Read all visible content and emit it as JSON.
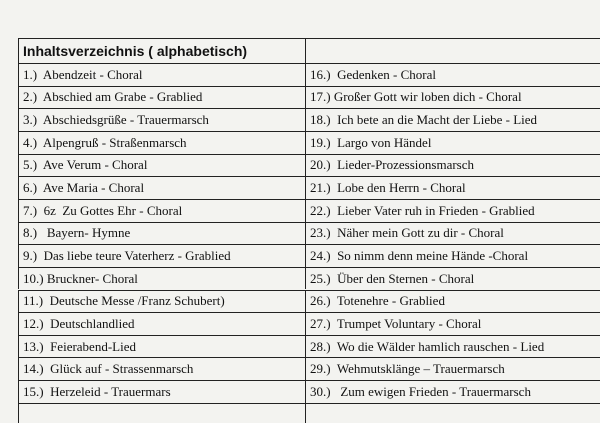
{
  "table": {
    "header": "Inhaltsverzeichnis ( alphabetisch)",
    "rows": [
      [
        "1.)  Abendzeit - Choral",
        "16.)  Gedenken - Choral"
      ],
      [
        "2.)  Abschied am Grabe - Grablied",
        "17.) Großer Gott wir loben dich - Choral"
      ],
      [
        "3.)  Abschiedsgrüße - Trauermarsch",
        "18.)  Ich bete an die Macht der Liebe - Lied"
      ],
      [
        "4.)  Alpengruß - Straßenmarsch",
        "19.)  Largo von Händel"
      ],
      [
        "5.)  Ave Verum - Choral",
        "20.)  Lieder-Prozessionsmarsch"
      ],
      [
        "6.)  Ave Maria - Choral",
        "21.)  Lobe den Herrn - Choral"
      ],
      [
        "7.)  6z  Zu Gottes Ehr - Choral",
        "22.)  Lieber Vater ruh in Frieden - Grablied"
      ],
      [
        "8.)   Bayern- Hymne",
        "23.)  Näher mein Gott zu dir - Choral"
      ],
      [
        "9.)  Das liebe teure Vaterherz - Grablied",
        "24.)  So nimm denn meine Hände -Choral"
      ],
      [
        "10.) Bruckner- Choral",
        "25.)  Über den Sternen - Choral"
      ],
      [
        "11.)  Deutsche Messe /Franz Schubert)",
        "26.)  Totenehre - Grablied"
      ],
      [
        "12.)  Deutschlandlied",
        "27.)  Trumpet Voluntary - Choral"
      ],
      [
        "13.)  Feierabend-Lied",
        "28.)  Wo die Wälder hamlich rauschen - Lied"
      ],
      [
        "14.)  Glück auf - Strassenmarsch",
        "29.)  Wehmutsklänge – Trauermarsch"
      ],
      [
        "15.)  Herzeleid - Trauermars",
        "30.)   Zum ewigen Frieden - Trauermarsch"
      ]
    ]
  }
}
